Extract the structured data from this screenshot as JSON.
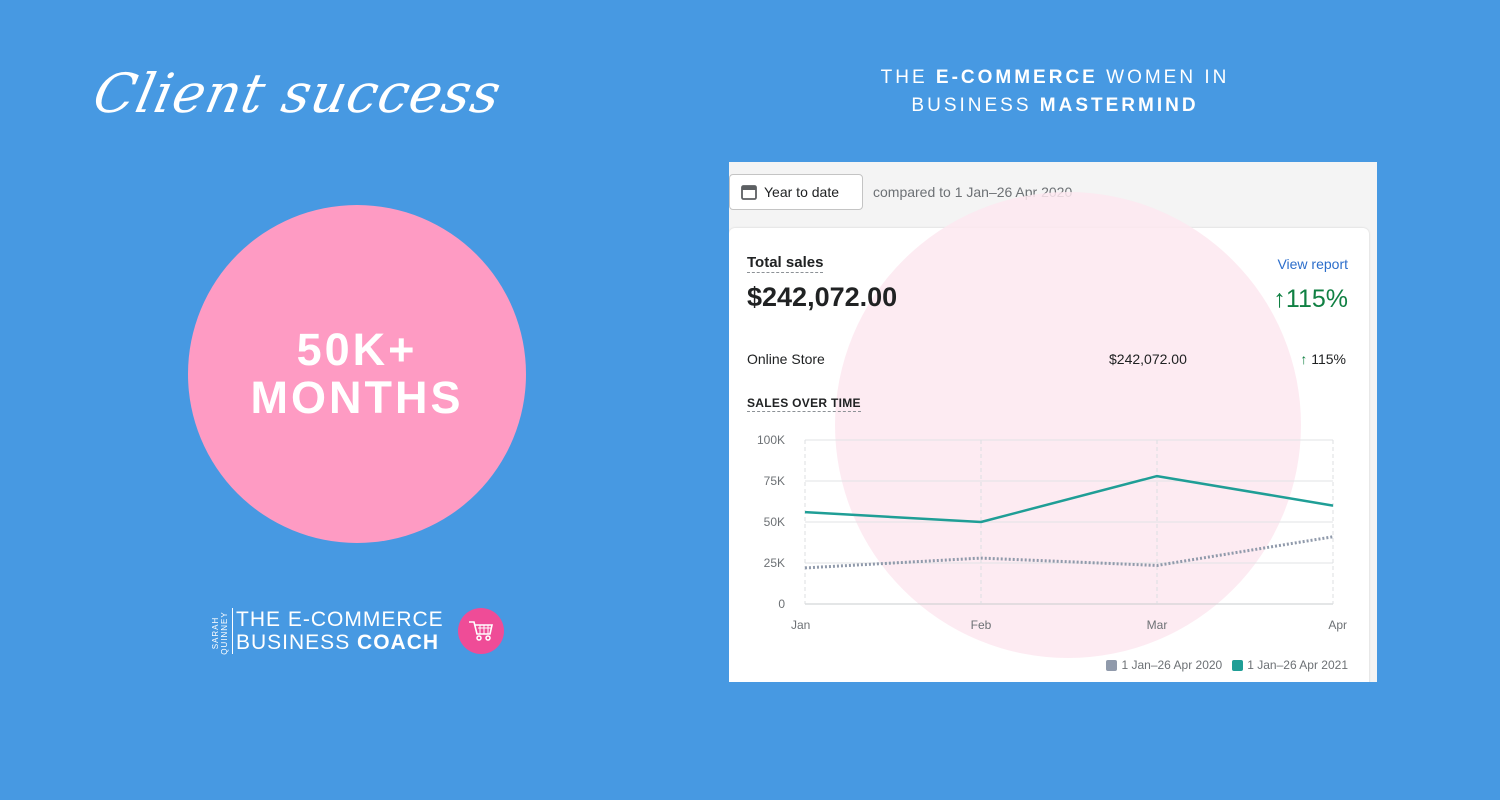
{
  "hero": {
    "script_title": "Client success"
  },
  "mastermind": {
    "line1_pre": "THE ",
    "line1_bold": "E-COMMERCE",
    "line1_post": " WOMEN IN",
    "line2_pre": "BUSINESS ",
    "line2_bold": "MASTERMIND"
  },
  "badge": {
    "line1": "50K+",
    "line2": "MONTHS"
  },
  "logo": {
    "vertical_top": "SARAH",
    "vertical_bottom": "QUINNEY",
    "line1": "THE E-COMMERCE",
    "line2_normal": "BUSINESS ",
    "line2_bold": "COACH"
  },
  "dashboard": {
    "date_button": "Year to date",
    "compared": "compared to 1 Jan–26 Apr 2020",
    "total_sales_label": "Total sales",
    "view_report": "View report",
    "total_sales_value": "$242,072.00",
    "total_sales_change": "↑115%",
    "channel": {
      "name": "Online Store",
      "value": "$242,072.00",
      "arrow": "↑",
      "change": " 115%"
    },
    "sales_over_time_label": "SALES OVER TIME"
  },
  "colors": {
    "background": "#4799e2",
    "badge_pink": "#fe9bc3",
    "logo_pink": "#ef4c97",
    "positive_green": "#108043",
    "series_current": "#1f9e96",
    "series_previous": "#909aab",
    "link_blue": "#2c6ecb"
  },
  "chart_data": {
    "type": "line",
    "categories": [
      "Jan",
      "Feb",
      "Mar",
      "Apr"
    ],
    "ylim": [
      0,
      100000
    ],
    "y_ticks": [
      0,
      25000,
      50000,
      75000,
      100000
    ],
    "y_tick_labels": [
      "0",
      "25K",
      "50K",
      "75K",
      "100K"
    ],
    "grid": true,
    "legend_position": "bottom-right",
    "series": [
      {
        "name": "1 Jan–26 Apr 2020",
        "values": [
          22000,
          28000,
          23500,
          41000
        ],
        "style": "dotted",
        "color": "#909aab"
      },
      {
        "name": "1 Jan–26 Apr 2021",
        "values": [
          56000,
          50000,
          78000,
          60000
        ],
        "style": "solid",
        "color": "#1f9e96"
      }
    ]
  }
}
